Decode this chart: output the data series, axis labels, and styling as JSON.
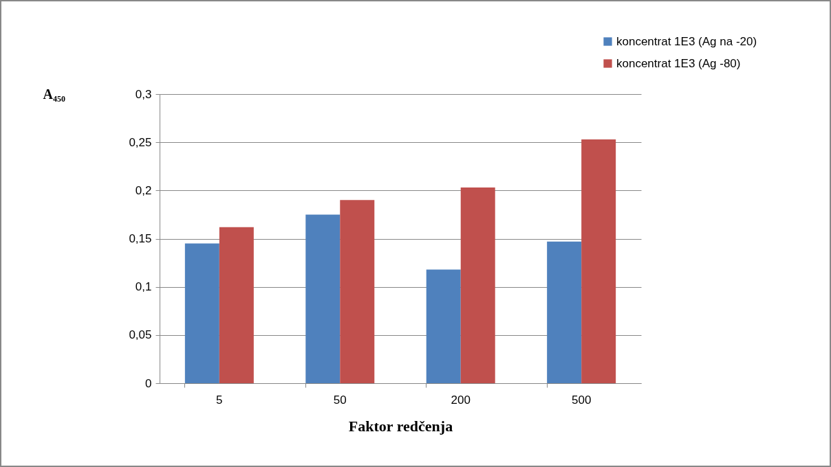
{
  "chart_data": {
    "type": "bar",
    "xlabel": "Faktor redčenja",
    "ylabel": "A₄₅₀",
    "categories": [
      "5",
      "50",
      "200",
      "500"
    ],
    "series": [
      {
        "name": "koncentrat 1E3 (Ag na -20)",
        "color": "#4f81bd",
        "values": [
          0.145,
          0.175,
          0.118,
          0.147
        ]
      },
      {
        "name": "koncentrat 1E3 (Ag -80)",
        "color": "#c0504d",
        "values": [
          0.162,
          0.19,
          0.203,
          0.253
        ]
      }
    ],
    "ylim": [
      0,
      0.3
    ],
    "yticks": [
      0,
      {
        "value": 0.05,
        "label": "0,05"
      },
      {
        "value": 0.1,
        "label": "0,1"
      },
      {
        "value": 0.15,
        "label": "0,15"
      },
      {
        "value": 0.2,
        "label": "0,2"
      },
      {
        "value": 0.25,
        "label": "0,25"
      },
      {
        "value": 0.3,
        "label": "0,3"
      }
    ],
    "grid": "y",
    "legend": "top right"
  }
}
